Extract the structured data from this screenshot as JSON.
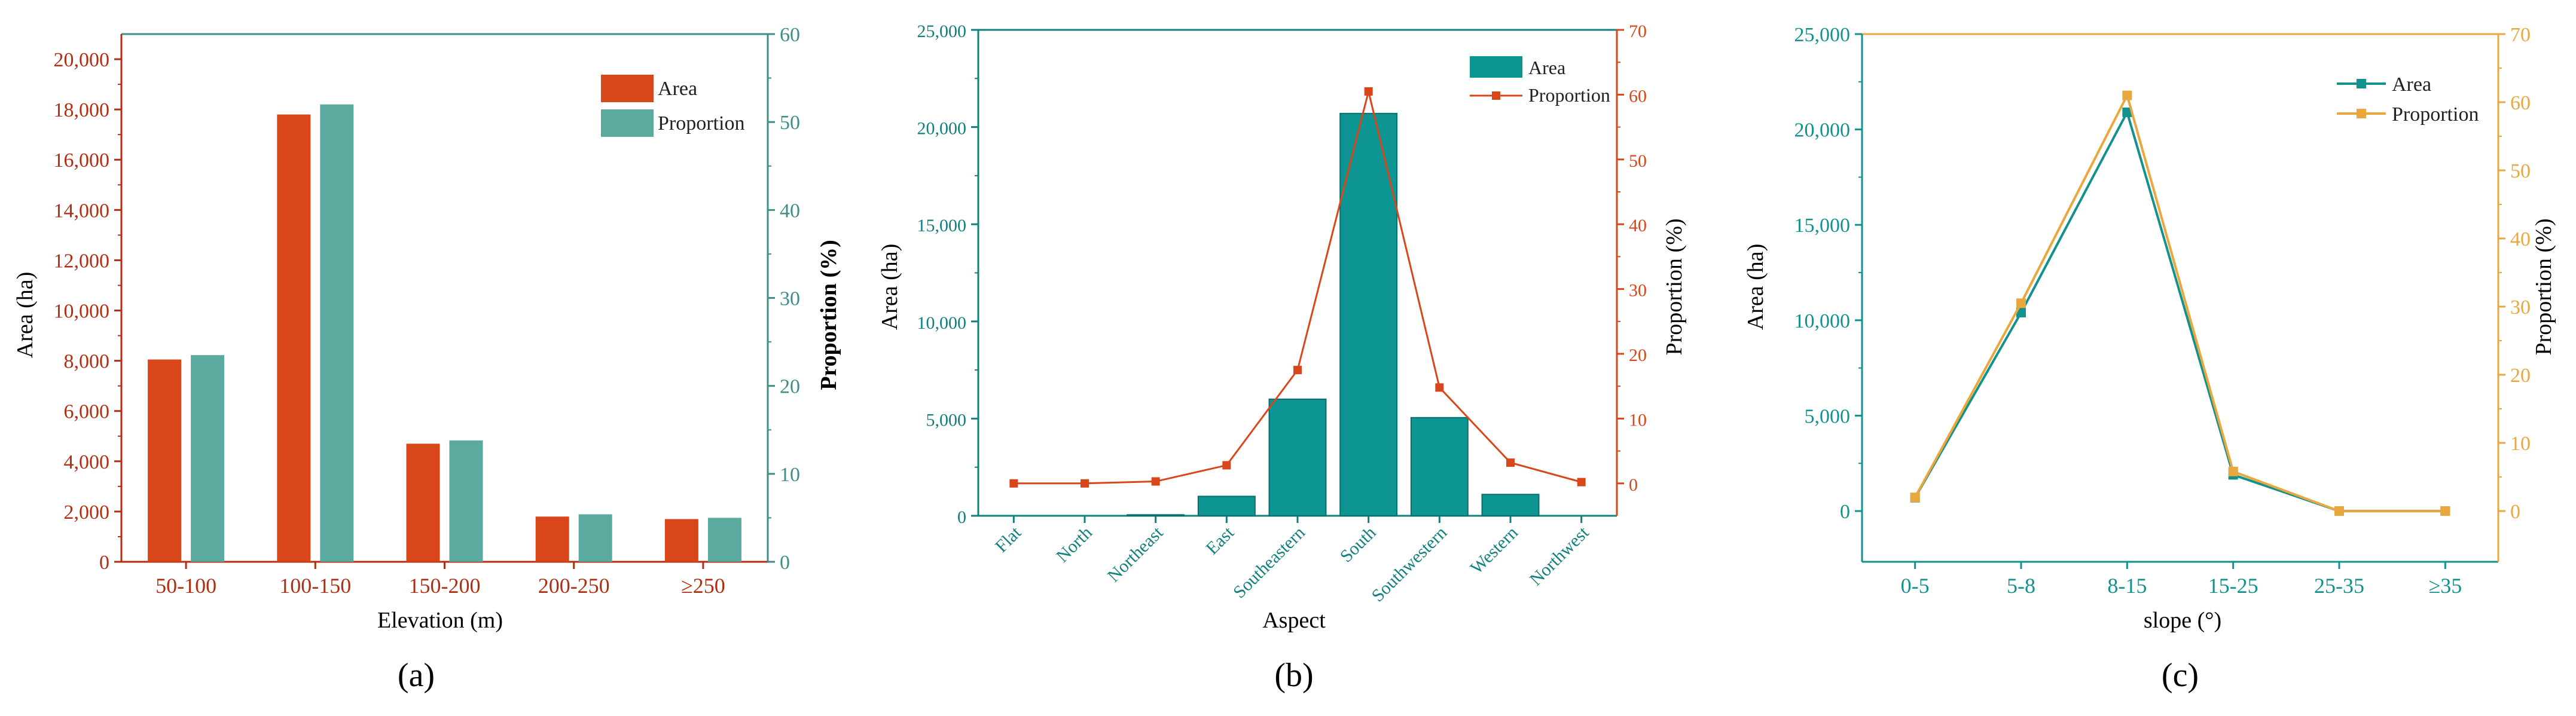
{
  "chart_data": [
    {
      "type": "bar",
      "panel_label": "(a)",
      "categories": [
        "50-100",
        "100-150",
        "150-200",
        "200-250",
        "≥250"
      ],
      "series": [
        {
          "name": "Area",
          "axis": "left",
          "color": "#d8461a",
          "values": [
            8050,
            17800,
            4700,
            1800,
            1700
          ]
        },
        {
          "name": "Proportion",
          "axis": "right",
          "color": "#5aaaa0",
          "values": [
            23.5,
            52,
            13.8,
            5.4,
            5
          ]
        }
      ],
      "xlabel": "Elevation (m)",
      "ylabel": "Area (ha)",
      "y2label": "Proportion (%)",
      "ylim": [
        0,
        21000
      ],
      "y2lim": [
        0,
        60
      ],
      "yticks": [
        0,
        2000,
        4000,
        6000,
        8000,
        10000,
        12000,
        14000,
        16000,
        18000,
        20000
      ],
      "ytick_labels": [
        "0",
        "2,000",
        "4,000",
        "6,000",
        "8,000",
        "10,000",
        "12,000",
        "14,000",
        "16,000",
        "18,000",
        "20,000"
      ],
      "y2ticks": [
        0,
        10,
        20,
        30,
        40,
        50,
        60
      ],
      "y2tick_labels": [
        "0",
        "10",
        "20",
        "30",
        "40",
        "50",
        "60"
      ],
      "left_axis_color": "#b22e12",
      "right_axis_color": "#3d8e88",
      "legend_position": "top-right"
    },
    {
      "type": "bar+line",
      "panel_label": "(b)",
      "categories": [
        "Flat",
        "North",
        "Northeast",
        "East",
        "Southeastern",
        "South",
        "Southwestern",
        "Western",
        "Northwest"
      ],
      "series": [
        {
          "name": "Area",
          "type": "bar",
          "axis": "left",
          "color": "#0c9593",
          "values": [
            0,
            0,
            50,
            1000,
            6000,
            20700,
            5050,
            1100,
            0
          ]
        },
        {
          "name": "Proportion",
          "type": "line",
          "axis": "right",
          "color": "#d8461a",
          "values": [
            0,
            0,
            0.3,
            2.8,
            17.5,
            60.5,
            14.8,
            3.2,
            0.2
          ]
        }
      ],
      "xlabel": "Aspect",
      "ylabel": "Area (ha)",
      "y2label": "Proportion (%)",
      "ylim": [
        0,
        25000
      ],
      "y2lim": [
        -5,
        70
      ],
      "yticks": [
        0,
        5000,
        10000,
        15000,
        20000,
        25000
      ],
      "ytick_labels": [
        "0",
        "5,000",
        "10,000",
        "15,000",
        "20,000",
        "25,000"
      ],
      "y2ticks": [
        0,
        10,
        20,
        30,
        40,
        50,
        60,
        70
      ],
      "y2tick_labels": [
        "0",
        "10",
        "20",
        "30",
        "40",
        "50",
        "60",
        "70"
      ],
      "left_axis_color": "#13807e",
      "right_axis_color": "#d8461a",
      "legend_position": "top-right"
    },
    {
      "type": "line",
      "panel_label": "(c)",
      "categories": [
        "0-5",
        "5-8",
        "8-15",
        "15-25",
        "25-35",
        "≥35"
      ],
      "series": [
        {
          "name": "Area",
          "axis": "left",
          "color": "#13918d",
          "values": [
            700,
            10400,
            20900,
            1900,
            0,
            0
          ]
        },
        {
          "name": "Proportion",
          "axis": "right",
          "color": "#eaa73d",
          "values": [
            2,
            30.5,
            61,
            5.8,
            0,
            0
          ]
        }
      ],
      "xlabel": "slope (°)",
      "ylabel": "Area (ha)",
      "y2label": "Proportion (%)",
      "ylim": [
        -2660,
        25000
      ],
      "y2lim": [
        -7.45,
        70
      ],
      "yticks": [
        0,
        5000,
        10000,
        15000,
        20000,
        25000
      ],
      "ytick_labels": [
        "0",
        "5,000",
        "10,000",
        "15,000",
        "20,000",
        "25,000"
      ],
      "y2ticks": [
        0,
        10,
        20,
        30,
        40,
        50,
        60,
        70
      ],
      "y2tick_labels": [
        "0",
        "10",
        "20",
        "30",
        "40",
        "50",
        "60",
        "70"
      ],
      "left_axis_color": "#13918d",
      "right_axis_color": "#eaa73d",
      "legend_position": "top-right"
    }
  ]
}
